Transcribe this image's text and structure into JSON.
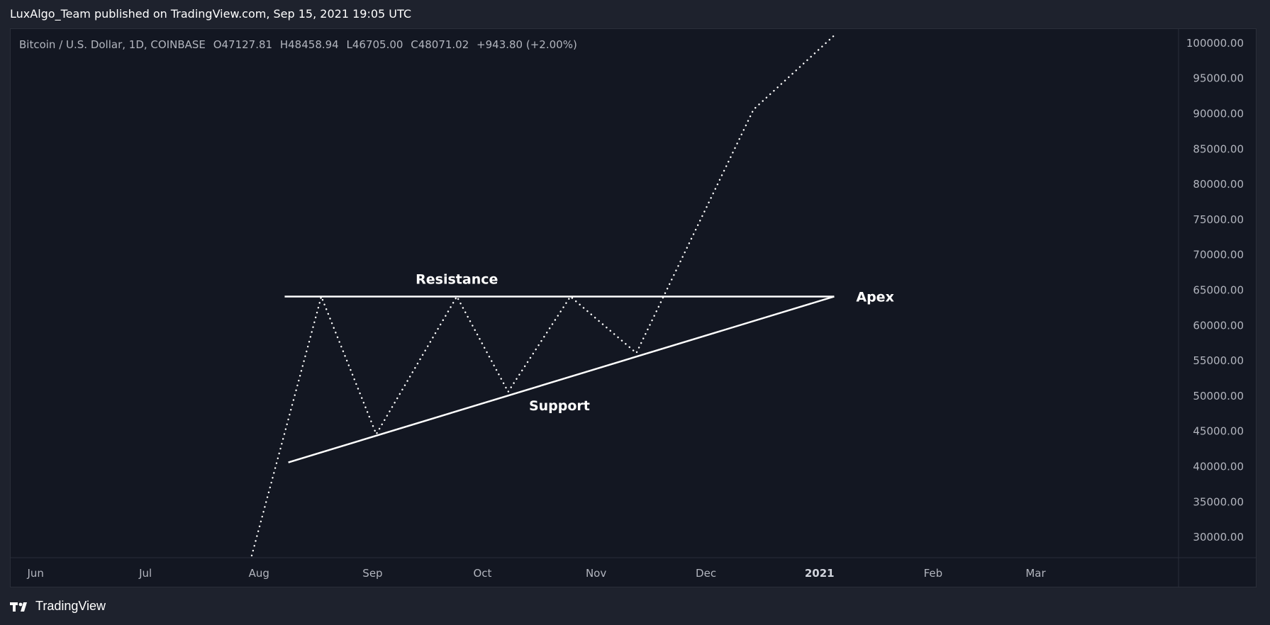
{
  "publish_line": "LuxAlgo_Team published on TradingView.com, Sep 15, 2021 19:05 UTC",
  "legend": {
    "symbol": "Bitcoin / U.S. Dollar, 1D, COINBASE",
    "open": "O47127.81",
    "high": "H48458.94",
    "low": "L46705.00",
    "close": "C48071.02",
    "change": "+943.80 (+2.00%)"
  },
  "brand": {
    "name": "TradingView",
    "logo_icon": "tradingview-logo-icon"
  },
  "colors": {
    "background": "#131722",
    "page": "#1e222d",
    "axis_text": "#b2b5be",
    "line": "#ffffff"
  },
  "chart_data": {
    "type": "line",
    "title": "",
    "y_axis_side": "right",
    "ylim": [
      27000,
      102000
    ],
    "y_ticks": [
      {
        "value": 30000,
        "label": "30000.00"
      },
      {
        "value": 35000,
        "label": "35000.00"
      },
      {
        "value": 40000,
        "label": "40000.00"
      },
      {
        "value": 45000,
        "label": "45000.00"
      },
      {
        "value": 50000,
        "label": "50000.00"
      },
      {
        "value": 55000,
        "label": "55000.00"
      },
      {
        "value": 60000,
        "label": "60000.00"
      },
      {
        "value": 65000,
        "label": "65000.00"
      },
      {
        "value": 70000,
        "label": "70000.00"
      },
      {
        "value": 75000,
        "label": "75000.00"
      },
      {
        "value": 80000,
        "label": "80000.00"
      },
      {
        "value": 85000,
        "label": "85000.00"
      },
      {
        "value": 90000,
        "label": "90000.00"
      },
      {
        "value": 95000,
        "label": "95000.00"
      },
      {
        "value": 100000,
        "label": "100000.00"
      }
    ],
    "xlim": [
      "2020-05-25",
      "2021-04-09"
    ],
    "x_ticks": [
      {
        "date": "2020-06-01",
        "label": "Jun"
      },
      {
        "date": "2020-07-01",
        "label": "Jul"
      },
      {
        "date": "2020-08-01",
        "label": "Aug"
      },
      {
        "date": "2020-09-01",
        "label": "Sep"
      },
      {
        "date": "2020-10-01",
        "label": "Oct"
      },
      {
        "date": "2020-11-01",
        "label": "Nov"
      },
      {
        "date": "2020-12-01",
        "label": "Dec"
      },
      {
        "date": "2021-01-01",
        "label": "2021"
      },
      {
        "date": "2021-02-01",
        "label": "Feb"
      },
      {
        "date": "2021-03-01",
        "label": "Mar"
      }
    ],
    "series": [
      {
        "style": "dotted",
        "points": [
          {
            "x": "2020-07-30",
            "y": 27300
          },
          {
            "x": "2020-08-18",
            "y": 64000
          },
          {
            "x": "2020-09-02",
            "y": 44500
          },
          {
            "x": "2020-09-24",
            "y": 64000
          },
          {
            "x": "2020-10-08",
            "y": 50500
          },
          {
            "x": "2020-10-25",
            "y": 64000
          },
          {
            "x": "2020-11-12",
            "y": 56000
          },
          {
            "x": "2020-12-14",
            "y": 90500
          },
          {
            "x": "2021-01-05",
            "y": 101000
          }
        ]
      }
    ],
    "trendlines": [
      {
        "name": "Resistance",
        "start": {
          "x": "2020-08-08",
          "y": 64000
        },
        "end": {
          "x": "2021-01-05",
          "y": 64000
        }
      },
      {
        "name": "Support",
        "start": {
          "x": "2020-08-09",
          "y": 40500
        },
        "end": {
          "x": "2021-01-05",
          "y": 64000
        }
      }
    ],
    "annotations": [
      {
        "text": "Resistance",
        "x": "2020-09-24",
        "y": 66500
      },
      {
        "text": "Apex",
        "x": "2021-01-11",
        "y": 64000
      },
      {
        "text": "Support",
        "x": "2020-10-22",
        "y": 48600
      }
    ]
  }
}
